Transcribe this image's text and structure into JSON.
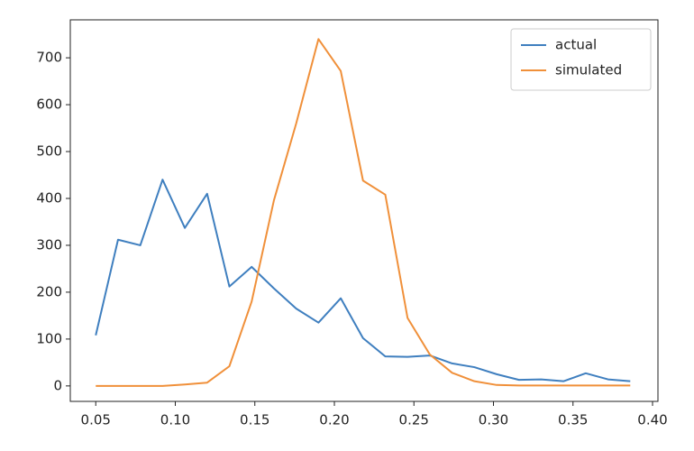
{
  "chart_data": {
    "type": "line",
    "x": [
      0.05,
      0.064,
      0.078,
      0.092,
      0.106,
      0.12,
      0.134,
      0.148,
      0.162,
      0.176,
      0.19,
      0.204,
      0.218,
      0.232,
      0.246,
      0.26,
      0.274,
      0.288,
      0.302,
      0.316,
      0.33,
      0.344,
      0.358,
      0.372,
      0.386
    ],
    "series": [
      {
        "name": "actual",
        "color": "#3f7fbf",
        "values": [
          108,
          312,
          300,
          440,
          337,
          410,
          212,
          254,
          208,
          165,
          135,
          187,
          102,
          63,
          62,
          65,
          48,
          40,
          25,
          13,
          14,
          10,
          27,
          14,
          10
        ]
      },
      {
        "name": "simulated",
        "color": "#f0903a",
        "values": [
          0,
          0,
          0,
          0,
          3,
          7,
          42,
          180,
          396,
          560,
          740,
          672,
          438,
          408,
          145,
          67,
          28,
          10,
          2,
          1,
          1,
          1,
          1,
          1,
          1
        ]
      }
    ],
    "xlim": [
      0.034,
      0.4034
    ],
    "ylim": [
      -33,
      781
    ],
    "xticks": [
      {
        "value": 0.05,
        "label": "0.05"
      },
      {
        "value": 0.1,
        "label": "0.10"
      },
      {
        "value": 0.15,
        "label": "0.15"
      },
      {
        "value": 0.2,
        "label": "0.20"
      },
      {
        "value": 0.25,
        "label": "0.25"
      },
      {
        "value": 0.3,
        "label": "0.30"
      },
      {
        "value": 0.35,
        "label": "0.35"
      },
      {
        "value": 0.4,
        "label": "0.40"
      }
    ],
    "yticks": [
      0,
      100,
      200,
      300,
      400,
      500,
      600,
      700
    ],
    "legend": "upper right"
  }
}
